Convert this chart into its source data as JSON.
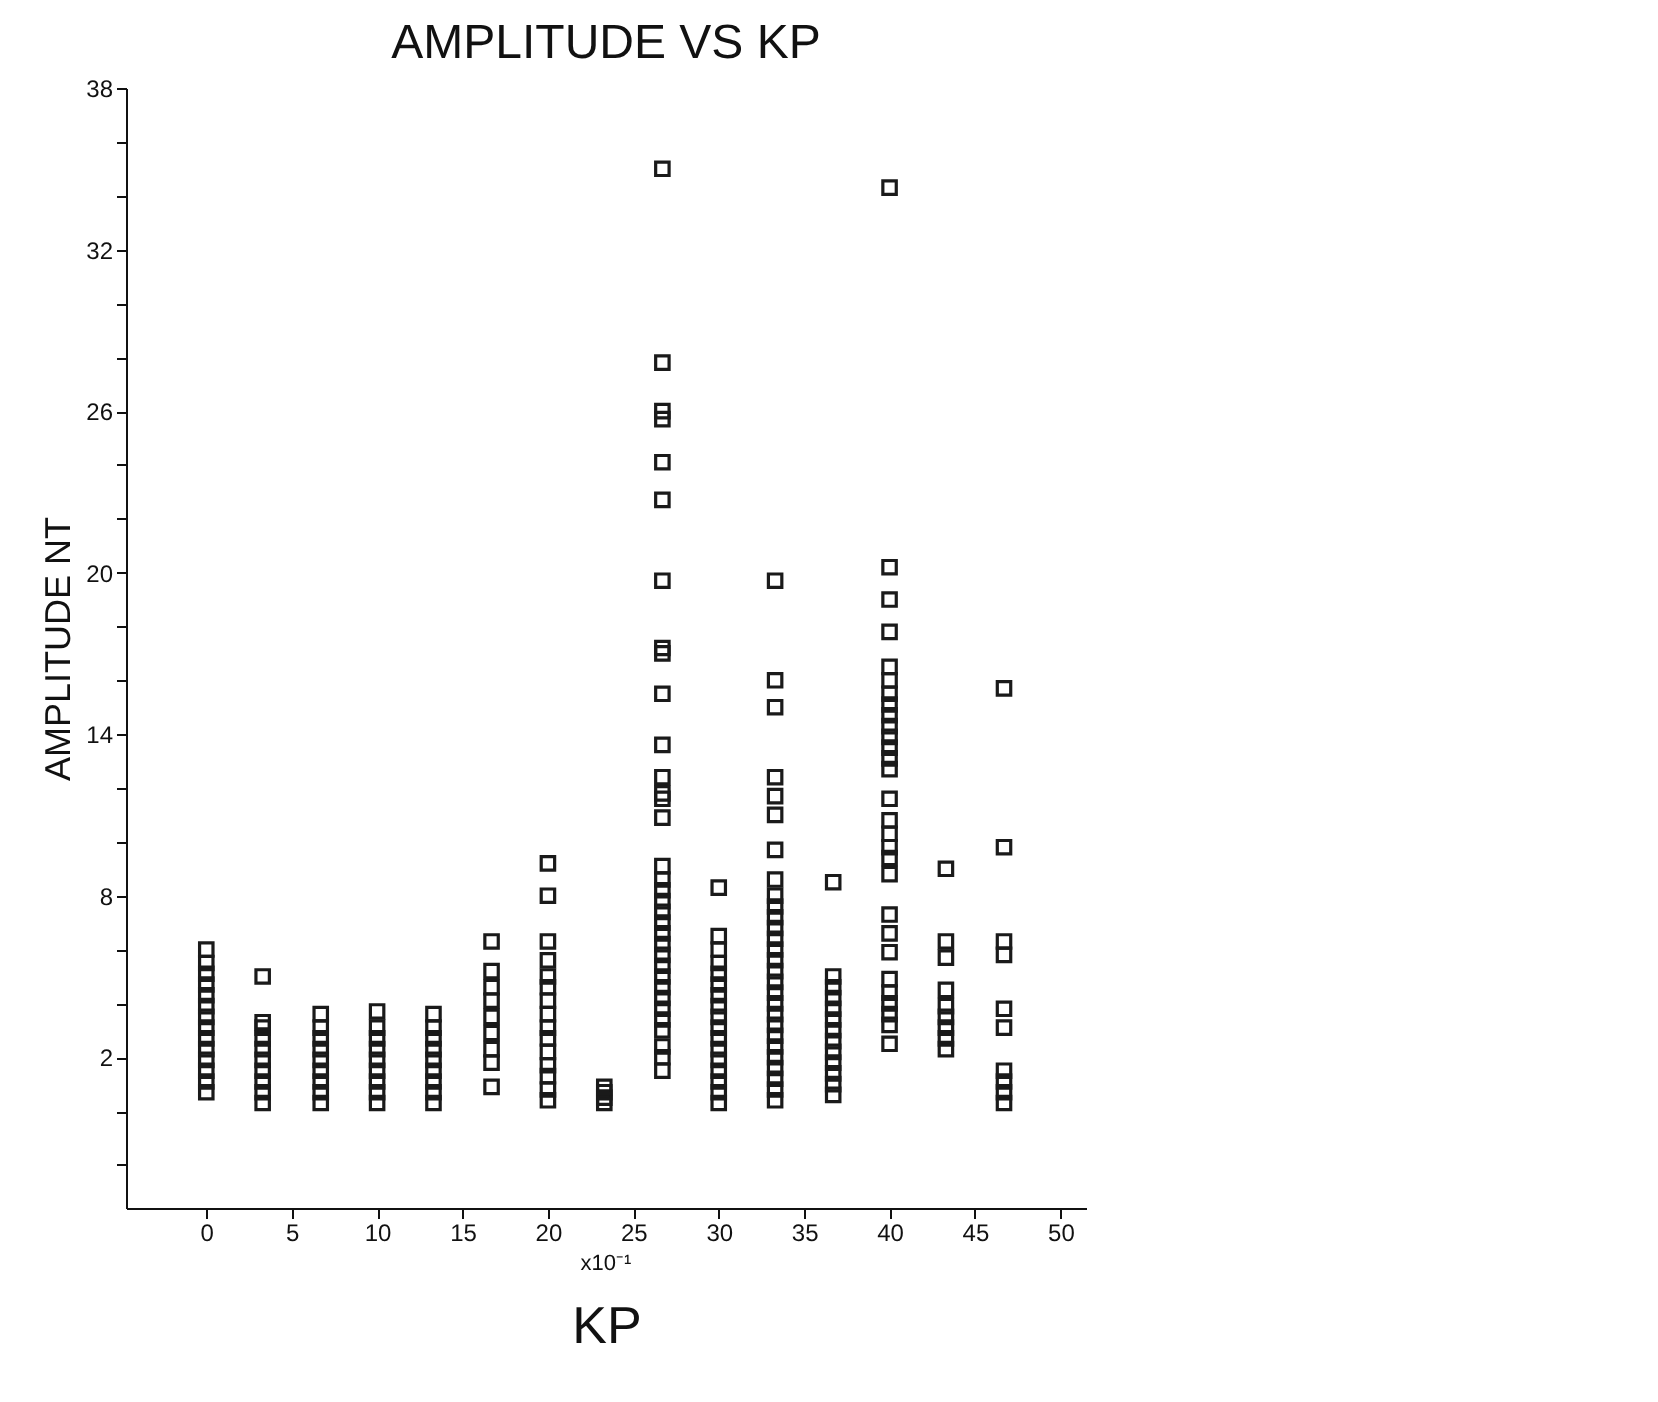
{
  "chart_data": {
    "type": "scatter",
    "title": "AMPLITUDE VS KP",
    "xlabel": "KP",
    "ylabel": "AMPLITUDE NT",
    "annotations": [
      "x10⁻¹"
    ],
    "marker": "square",
    "grid": false,
    "xlim": [
      -4.7,
      51.5
    ],
    "xticks": [
      0,
      5,
      10,
      15,
      20,
      25,
      30,
      35,
      40,
      45,
      50
    ],
    "ylim": [
      -3.6,
      38
    ],
    "yticks": [
      {
        "value": -2,
        "label": null
      },
      {
        "value": 0,
        "label": null
      },
      2,
      {
        "value": 4,
        "label": null
      },
      {
        "value": 6,
        "label": null
      },
      8,
      {
        "value": 10,
        "label": null
      },
      {
        "value": 12,
        "label": null
      },
      14,
      {
        "value": 16,
        "label": null
      },
      {
        "value": 18,
        "label": null
      },
      20,
      {
        "value": 22,
        "label": null
      },
      {
        "value": 24,
        "label": null
      },
      26,
      {
        "value": 28,
        "label": null
      },
      {
        "value": 30,
        "label": null
      },
      32,
      {
        "value": 34,
        "label": null
      },
      {
        "value": 36,
        "label": null
      },
      38
    ],
    "series": [
      {
        "color": "#1a1a1a",
        "x": [
          0,
          0,
          0,
          0,
          0,
          0,
          0,
          0,
          0,
          0,
          0,
          0,
          0,
          0,
          3.3,
          3.3,
          3.3,
          3.3,
          3.3,
          3.3,
          3.3,
          3.3,
          3.3,
          3.3,
          6.7,
          6.7,
          6.7,
          6.7,
          6.7,
          6.7,
          6.7,
          6.7,
          6.7,
          10,
          10,
          10,
          10,
          10,
          10,
          10,
          10,
          10,
          13.3,
          13.3,
          13.3,
          13.3,
          13.3,
          13.3,
          13.3,
          13.3,
          13.3,
          16.7,
          16.7,
          16.7,
          16.7,
          16.7,
          16.7,
          16.7,
          16.7,
          16.7,
          20,
          20,
          20,
          20,
          20,
          20,
          20,
          20,
          20,
          20,
          20,
          20,
          20,
          20,
          20,
          23.3,
          23.3,
          23.3,
          23.3,
          26.7,
          26.7,
          26.7,
          26.7,
          26.7,
          26.7,
          26.7,
          26.7,
          26.7,
          26.7,
          26.7,
          26.7,
          26.7,
          26.7,
          26.7,
          26.7,
          26.7,
          26.7,
          26.7,
          26.7,
          26.7,
          26.7,
          26.7,
          26.7,
          26.7,
          26.7,
          26.7,
          26.7,
          26.7,
          26.7,
          26.7,
          26.7,
          26.7,
          26.7,
          30,
          30,
          30,
          30,
          30,
          30,
          30,
          30,
          30,
          30,
          30,
          30,
          30,
          30,
          30,
          30,
          30,
          33.3,
          33.3,
          33.3,
          33.3,
          33.3,
          33.3,
          33.3,
          33.3,
          33.3,
          33.3,
          33.3,
          33.3,
          33.3,
          33.3,
          33.3,
          33.3,
          33.3,
          33.3,
          33.3,
          33.3,
          33.3,
          33.3,
          33.3,
          33.3,
          33.3,
          33.3,
          33.3,
          33.3,
          36.7,
          36.7,
          36.7,
          36.7,
          36.7,
          36.7,
          36.7,
          36.7,
          36.7,
          36.7,
          36.7,
          36.7,
          36.7,
          40,
          40,
          40,
          40,
          40,
          40,
          40,
          40,
          40,
          40,
          40,
          40,
          40,
          40,
          40,
          40,
          40,
          40,
          40,
          40,
          40,
          40,
          40,
          40,
          40,
          40,
          40,
          40,
          40,
          43.3,
          43.3,
          43.3,
          43.3,
          43.3,
          43.3,
          43.3,
          43.3,
          43.3,
          46.7,
          46.7,
          46.7,
          46.7,
          46.7,
          46.7,
          46.7,
          46.7,
          46.7,
          46.7
        ],
        "values": [
          0.7,
          1.1,
          1.5,
          1.9,
          2.3,
          2.7,
          3.1,
          3.5,
          3.9,
          4.3,
          4.7,
          5.1,
          5.5,
          6.0,
          0.3,
          0.7,
          1.1,
          1.5,
          1.9,
          2.3,
          2.7,
          3.1,
          3.3,
          5.0,
          0.3,
          0.7,
          1.1,
          1.5,
          1.9,
          2.3,
          2.7,
          3.1,
          3.6,
          0.3,
          0.7,
          1.1,
          1.5,
          1.9,
          2.3,
          2.7,
          3.1,
          3.7,
          0.3,
          0.7,
          1.1,
          1.5,
          1.9,
          2.3,
          2.7,
          3.1,
          3.6,
          0.9,
          1.8,
          2.3,
          2.9,
          3.5,
          4.1,
          4.6,
          5.2,
          6.3,
          0.4,
          0.8,
          1.3,
          1.7,
          2.2,
          2.7,
          3.1,
          3.6,
          4.1,
          4.6,
          5.0,
          5.6,
          6.3,
          8.0,
          9.2,
          0.3,
          0.5,
          0.7,
          0.9,
          1.5,
          2.0,
          2.4,
          3.0,
          3.4,
          3.8,
          4.2,
          4.6,
          5.0,
          5.4,
          5.8,
          6.2,
          6.6,
          7.0,
          7.4,
          7.8,
          8.2,
          8.6,
          9.1,
          10.9,
          11.6,
          11.8,
          12.4,
          13.6,
          15.5,
          17.0,
          17.2,
          19.7,
          22.7,
          24.1,
          25.7,
          26.0,
          27.8,
          35.0,
          0.3,
          0.7,
          1.1,
          1.5,
          1.9,
          2.3,
          2.7,
          3.1,
          3.5,
          3.9,
          4.3,
          4.7,
          5.1,
          5.5,
          6.0,
          6.5,
          8.3,
          0.4,
          0.8,
          1.2,
          1.6,
          2.0,
          2.4,
          2.8,
          3.2,
          3.6,
          4.0,
          4.4,
          4.8,
          5.2,
          5.6,
          6.0,
          6.4,
          6.8,
          7.2,
          7.6,
          8.0,
          8.6,
          9.7,
          11.0,
          11.7,
          12.4,
          15.0,
          16.0,
          19.7,
          0.6,
          1.0,
          1.4,
          1.8,
          2.2,
          2.6,
          3.0,
          3.4,
          3.8,
          4.2,
          4.6,
          5.0,
          8.5,
          2.5,
          3.2,
          3.6,
          4.0,
          4.4,
          4.9,
          5.9,
          6.6,
          7.3,
          8.8,
          9.4,
          9.8,
          10.3,
          10.8,
          11.6,
          12.7,
          13.1,
          13.5,
          13.9,
          14.3,
          14.7,
          15.1,
          15.5,
          16.0,
          16.5,
          17.8,
          19.0,
          20.2,
          34.3,
          2.3,
          2.7,
          3.1,
          3.5,
          3.9,
          4.5,
          5.7,
          6.3,
          9.0,
          0.3,
          0.7,
          1.1,
          1.5,
          3.1,
          3.8,
          5.8,
          6.3,
          9.8,
          15.7
        ]
      }
    ]
  }
}
